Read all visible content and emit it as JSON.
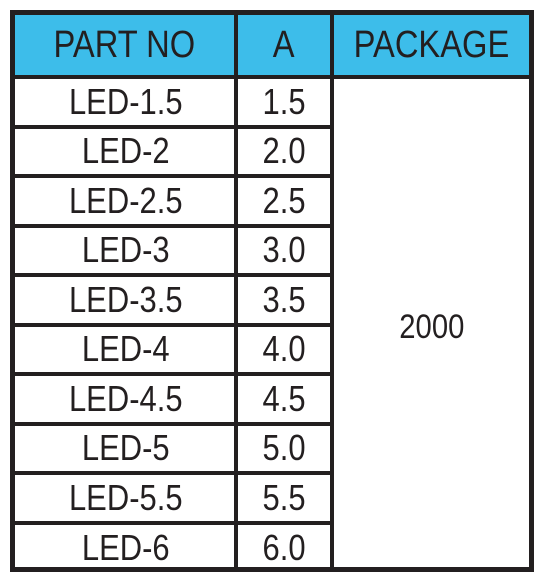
{
  "table": {
    "headers": {
      "part_no": "PART NO",
      "amp": "A",
      "package": "PACKAGE"
    },
    "rows": [
      {
        "part": "LED-1.5",
        "amp": "1.5"
      },
      {
        "part": "LED-2",
        "amp": "2.0"
      },
      {
        "part": "LED-2.5",
        "amp": "2.5"
      },
      {
        "part": "LED-3",
        "amp": "3.0"
      },
      {
        "part": "LED-3.5",
        "amp": "3.5"
      },
      {
        "part": "LED-4",
        "amp": "4.0"
      },
      {
        "part": "LED-4.5",
        "amp": "4.5"
      },
      {
        "part": "LED-5",
        "amp": "5.0"
      },
      {
        "part": "LED-5.5",
        "amp": "5.5"
      },
      {
        "part": "LED-6",
        "amp": "6.0"
      }
    ],
    "package_value": "2000"
  },
  "colors": {
    "header_background": "#3dbdea",
    "border": "#231f20",
    "text": "#231f20"
  }
}
